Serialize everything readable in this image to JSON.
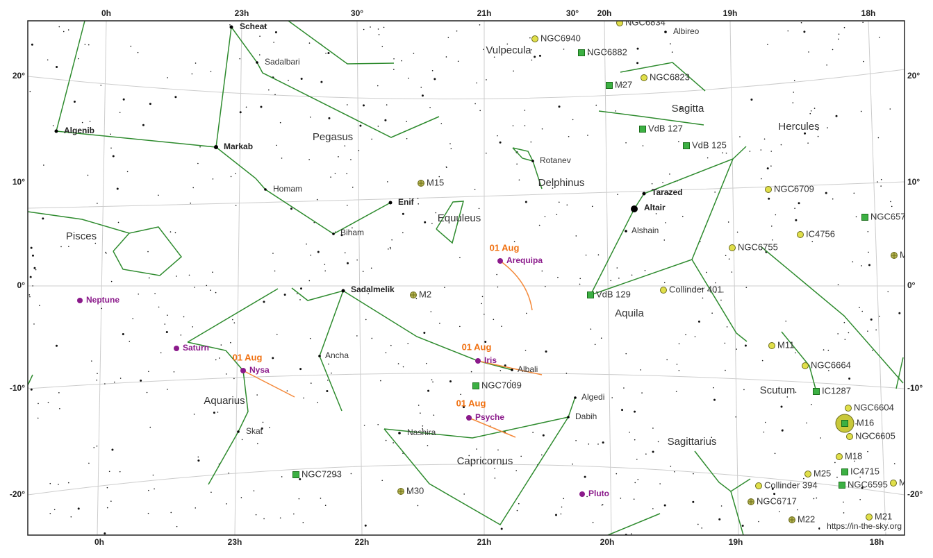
{
  "axes": {
    "top": [
      "0h",
      "23h",
      "30°",
      "21h",
      "30°",
      "20h",
      "19h",
      "18h"
    ],
    "bottom": [
      "0h",
      "23h",
      "22h",
      "21h",
      "20h",
      "19h",
      "18h"
    ],
    "left": [
      "20°",
      "10°",
      "0°",
      "-10°",
      "-20°"
    ],
    "right": [
      "20°",
      "10°",
      "0°",
      "-10°",
      "-20°"
    ]
  },
  "constellations": [
    "Vulpecula",
    "Pegasus",
    "Sagitta",
    "Hercules",
    "Delphinus",
    "Equuleus",
    "Pisces",
    "Aquila",
    "Aquarius",
    "Scutum",
    "Capricornus",
    "Sagittarius"
  ],
  "bright_stars": [
    "Scheat",
    "Algenib",
    "Markab",
    "Enif",
    "Tarazed",
    "Altair",
    "Sadalmelik"
  ],
  "stars": [
    "Sadalbari",
    "Homam",
    "Biham",
    "Rotanev",
    "Alshain",
    "Ancha",
    "Albali",
    "Skat",
    "Nashira",
    "Algedi",
    "Dabih",
    "Albireo"
  ],
  "objects": [
    "NGC6834",
    "NGC6940",
    "NGC6882",
    "NGC6823",
    "M27",
    "VdB 127",
    "VdB 125",
    "M15",
    "NGC6709",
    "NGC657",
    "IC4756",
    "NGC6755",
    "M2",
    "VdB 129",
    "Collinder 401",
    "M11",
    "NGC6664",
    "NGC7009",
    "IC1287",
    "NGC6604",
    "M16",
    "NGC6605",
    "M18",
    "NGC7293",
    "M25",
    "IC4715",
    "Collinder 394",
    "NGC6595",
    "M30",
    "NGC6717",
    "M22",
    "M21",
    "M",
    "M"
  ],
  "planets": [
    "Neptune",
    "Saturn",
    "Nysa",
    "Iris",
    "Arequipa",
    "Psyche",
    "Pluto"
  ],
  "dates": [
    "01 Aug",
    "01 Aug",
    "01 Aug",
    "01 Aug"
  ],
  "credit": "https://in-the-sky.org"
}
